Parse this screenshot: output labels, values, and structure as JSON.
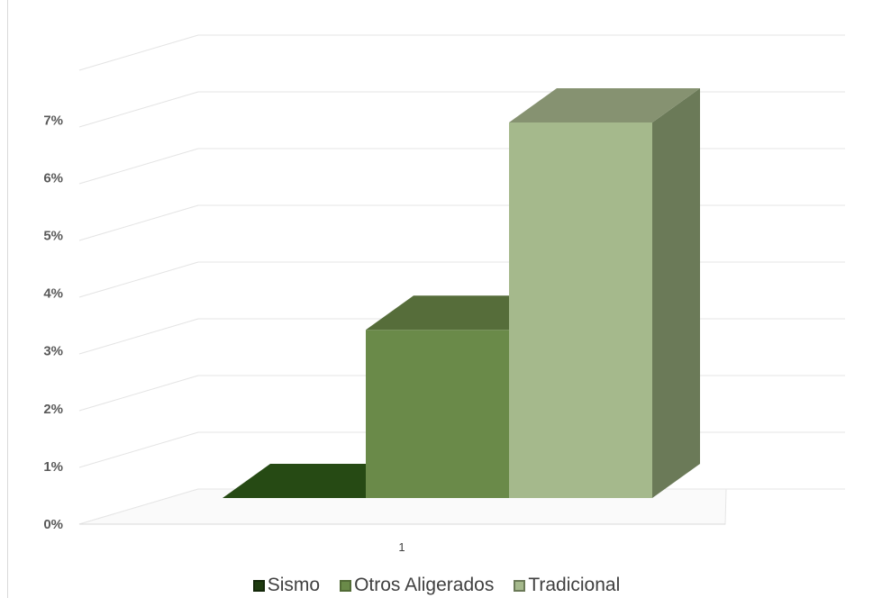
{
  "chart_data": {
    "type": "bar",
    "style": "3d-clustered-column",
    "categories": [
      "1"
    ],
    "series": [
      {
        "name": "Sismo",
        "values": [
          0.0
        ],
        "color": "#1e3b0f",
        "side_color": "#14280a",
        "top_color": "#264a14"
      },
      {
        "name": "Otros Aligerados",
        "values": [
          3.0
        ],
        "color": "#6a8a49",
        "side_color": "#526b36",
        "top_color": "#566d3a"
      },
      {
        "name": "Tradicional",
        "values": [
          6.7
        ],
        "color": "#a5b98c",
        "side_color": "#6b7a58",
        "top_color": "#869271"
      }
    ],
    "y_ticks": [
      "0%",
      "1%",
      "2%",
      "3%",
      "4%",
      "5%",
      "6%",
      "7%"
    ],
    "ylim": [
      0,
      8
    ],
    "grid": true,
    "legend": "bottom"
  }
}
